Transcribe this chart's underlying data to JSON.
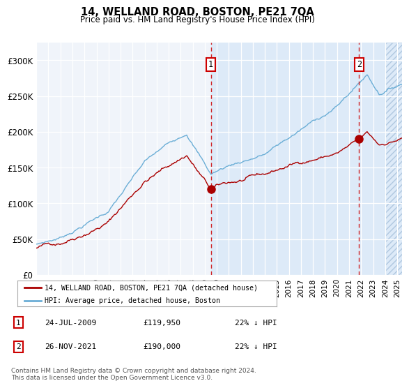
{
  "title": "14, WELLAND ROAD, BOSTON, PE21 7QA",
  "subtitle": "Price paid vs. HM Land Registry's House Price Index (HPI)",
  "hpi_label": "HPI: Average price, detached house, Boston",
  "property_label": "14, WELLAND ROAD, BOSTON, PE21 7QA (detached house)",
  "hpi_color": "#6baed6",
  "property_color": "#aa0000",
  "plot_bg": "#f0f4fa",
  "shaded_bg": "#ddeaf8",
  "grid_color": "#ffffff",
  "ylim": [
    0,
    325000
  ],
  "yticks": [
    0,
    50000,
    100000,
    150000,
    200000,
    250000,
    300000
  ],
  "ytick_labels": [
    "£0",
    "£50K",
    "£100K",
    "£150K",
    "£200K",
    "£250K",
    "£300K"
  ],
  "footer": "Contains HM Land Registry data © Crown copyright and database right 2024.\nThis data is licensed under the Open Government Licence v3.0."
}
